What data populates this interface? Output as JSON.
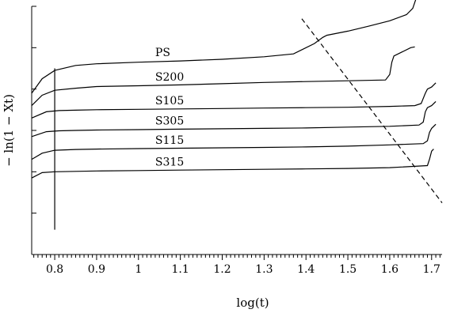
{
  "chart_data": {
    "type": "line",
    "xlabel": "log(t)",
    "ylabel": "− ln(1 − Xt)",
    "xlim": [
      0.745,
      1.725
    ],
    "ylim": [
      0,
      6
    ],
    "x_ticks": [
      0.8,
      0.9,
      1,
      1.1,
      1.2,
      1.3,
      1.4,
      1.5,
      1.6,
      1.7
    ],
    "x_tick_labels": [
      "0.8",
      "0.9",
      "1",
      "1.1",
      "1.2",
      "1.3",
      "1.4",
      "1.5",
      "1.6",
      "1.7"
    ],
    "y_ticks": [
      0,
      1,
      2,
      3,
      4,
      5,
      6
    ],
    "y_tick_labels_shown": false,
    "grid": false,
    "legend": "none",
    "series": [
      {
        "name": "PS",
        "x": [
          0.745,
          0.77,
          0.8,
          0.85,
          0.9,
          1.0,
          1.1,
          1.2,
          1.3,
          1.37,
          1.42,
          1.44,
          1.45,
          1.5,
          1.55,
          1.6,
          1.64,
          1.655,
          1.665
        ],
        "y": [
          3.9,
          4.25,
          4.45,
          4.57,
          4.61,
          4.65,
          4.68,
          4.72,
          4.78,
          4.85,
          5.1,
          5.25,
          5.3,
          5.4,
          5.52,
          5.65,
          5.8,
          5.95,
          6.25
        ]
      },
      {
        "name": "S200",
        "x": [
          0.745,
          0.77,
          0.8,
          0.85,
          0.9,
          1.0,
          1.1,
          1.2,
          1.3,
          1.4,
          1.5,
          1.59,
          1.6,
          1.605,
          1.61,
          1.63,
          1.65,
          1.66
        ],
        "y": [
          3.6,
          3.85,
          3.97,
          4.02,
          4.06,
          4.08,
          4.1,
          4.13,
          4.16,
          4.18,
          4.2,
          4.22,
          4.35,
          4.65,
          4.8,
          4.9,
          5.0,
          5.02
        ]
      },
      {
        "name": "S105",
        "x": [
          0.745,
          0.78,
          0.81,
          0.85,
          0.9,
          1.0,
          1.1,
          1.2,
          1.3,
          1.4,
          1.5,
          1.6,
          1.66,
          1.675,
          1.685,
          1.69,
          1.7,
          1.71
        ],
        "y": [
          3.3,
          3.45,
          3.48,
          3.49,
          3.5,
          3.51,
          3.52,
          3.53,
          3.54,
          3.55,
          3.56,
          3.58,
          3.6,
          3.65,
          3.9,
          4.0,
          4.05,
          4.15
        ]
      },
      {
        "name": "S305",
        "x": [
          0.745,
          0.78,
          0.81,
          0.85,
          0.9,
          1.0,
          1.1,
          1.2,
          1.3,
          1.4,
          1.5,
          1.6,
          1.67,
          1.68,
          1.685,
          1.69,
          1.7,
          1.71
        ],
        "y": [
          2.85,
          2.97,
          2.99,
          3.0,
          3.01,
          3.02,
          3.03,
          3.04,
          3.05,
          3.06,
          3.08,
          3.1,
          3.13,
          3.2,
          3.45,
          3.55,
          3.6,
          3.7
        ]
      },
      {
        "name": "S115",
        "x": [
          0.745,
          0.77,
          0.8,
          0.85,
          0.9,
          1.0,
          1.1,
          1.2,
          1.3,
          1.4,
          1.5,
          1.6,
          1.68,
          1.69,
          1.695,
          1.7,
          1.71
        ],
        "y": [
          2.3,
          2.45,
          2.52,
          2.54,
          2.55,
          2.56,
          2.57,
          2.58,
          2.59,
          2.6,
          2.62,
          2.65,
          2.68,
          2.75,
          2.95,
          3.05,
          3.15
        ]
      },
      {
        "name": "S315",
        "x": [
          0.745,
          0.77,
          0.8,
          0.85,
          0.9,
          1.0,
          1.1,
          1.2,
          1.3,
          1.4,
          1.5,
          1.6,
          1.69,
          1.695,
          1.7,
          1.705
        ],
        "y": [
          1.85,
          1.98,
          2.0,
          2.01,
          2.02,
          2.03,
          2.04,
          2.05,
          2.06,
          2.07,
          2.08,
          2.1,
          2.15,
          2.3,
          2.5,
          2.55
        ]
      }
    ],
    "series_label_positions": [
      {
        "name": "PS",
        "x": 1.04,
        "y": 4.72
      },
      {
        "name": "S200",
        "x": 1.04,
        "y": 4.13
      },
      {
        "name": "S105",
        "x": 1.04,
        "y": 3.55
      },
      {
        "name": "S305",
        "x": 1.04,
        "y": 3.07
      },
      {
        "name": "S115",
        "x": 1.04,
        "y": 2.6
      },
      {
        "name": "S315",
        "x": 1.04,
        "y": 2.07
      }
    ],
    "annotations": [
      {
        "type": "vertical-line",
        "x": 0.8,
        "y": [
          0.6,
          4.5
        ]
      },
      {
        "type": "dashed-line",
        "x": [
          1.39,
          1.725
        ],
        "y": [
          5.7,
          1.25
        ]
      }
    ]
  }
}
